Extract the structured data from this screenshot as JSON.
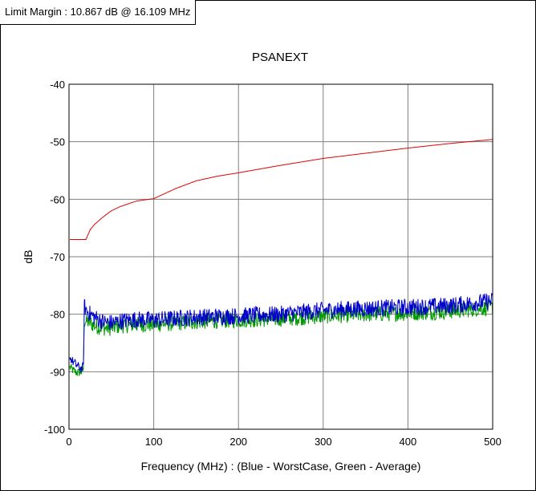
{
  "header": {
    "limit_margin": "Limit Margin : 10.867 dB @ 16.109 MHz"
  },
  "chart_data": {
    "type": "line",
    "title": "PSANEXT",
    "xlabel": "Frequency (MHz) : (Blue - WorstCase, Green - Average)",
    "ylabel": "dB",
    "xlim": [
      0,
      500
    ],
    "ylim": [
      -100,
      -40
    ],
    "xticks": [
      0,
      100,
      200,
      300,
      400,
      500
    ],
    "yticks": [
      -40,
      -50,
      -60,
      -70,
      -80,
      -90,
      -100
    ],
    "grid": true,
    "colors": {
      "limit": "#e00000",
      "worstcase": "#0000cc",
      "average": "#009900"
    },
    "series": [
      {
        "key": "limit",
        "x": [
          1,
          20,
          25,
          30,
          40,
          50,
          60,
          70,
          80,
          100,
          125,
          150,
          175,
          200,
          250,
          300,
          350,
          400,
          450,
          500
        ],
        "values": [
          -67,
          -67,
          -65.3,
          -64.4,
          -63.1,
          -62.0,
          -61.3,
          -60.8,
          -60.3,
          -59.9,
          -58.2,
          -56.8,
          -56.0,
          -55.4,
          -54.1,
          -52.9,
          -52.0,
          -51.1,
          -50.3,
          -49.6
        ]
      },
      {
        "key": "worstcase",
        "x": [
          1,
          5,
          10,
          15,
          17,
          18,
          20,
          25,
          30,
          40,
          50,
          60,
          80,
          100,
          150,
          200,
          250,
          300,
          350,
          400,
          450,
          500
        ],
        "values": [
          -87.5,
          -88.3,
          -89.0,
          -89.5,
          -89.0,
          -78.5,
          -79.2,
          -80.0,
          -80.5,
          -81.3,
          -81.5,
          -81.2,
          -80.9,
          -81.0,
          -80.5,
          -80.3,
          -80.0,
          -79.3,
          -79.0,
          -78.8,
          -78.5,
          -77.7
        ]
      },
      {
        "key": "average",
        "x": [
          1,
          5,
          10,
          15,
          17,
          18,
          20,
          25,
          30,
          40,
          50,
          60,
          80,
          100,
          150,
          200,
          250,
          300,
          350,
          400,
          450,
          500
        ],
        "values": [
          -89.2,
          -89.8,
          -90.2,
          -90.0,
          -89.5,
          -81.0,
          -81.2,
          -81.5,
          -82.0,
          -82.4,
          -82.4,
          -82.0,
          -81.8,
          -81.8,
          -81.3,
          -81.0,
          -80.8,
          -80.3,
          -80.0,
          -79.8,
          -79.5,
          -78.8
        ]
      }
    ]
  }
}
